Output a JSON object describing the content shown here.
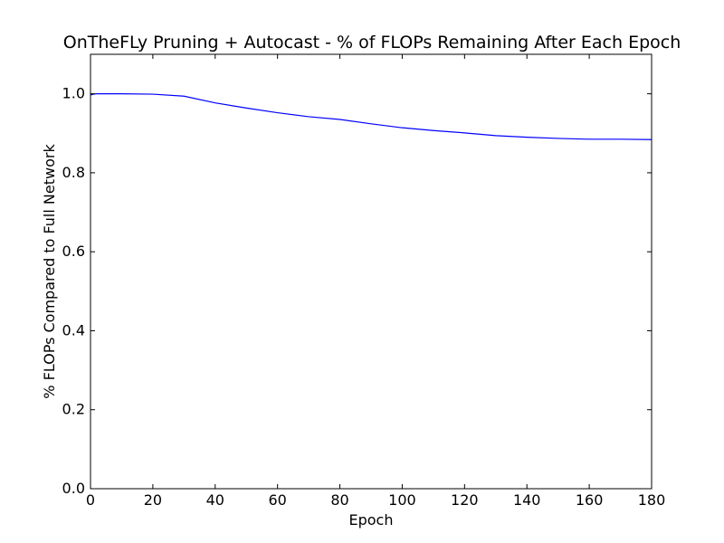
{
  "chart_data": {
    "type": "line",
    "title": "OnTheFLy Pruning + Autocast - % of FLOPs Remaining After Each Epoch",
    "xlabel": "Epoch",
    "ylabel": "% FLOPs Compared to Full Network",
    "xlim": [
      0,
      180
    ],
    "ylim": [
      0.0,
      1.1
    ],
    "xticks": [
      0,
      20,
      40,
      60,
      80,
      100,
      120,
      140,
      160,
      180
    ],
    "xtick_labels": [
      "0",
      "20",
      "40",
      "60",
      "80",
      "100",
      "120",
      "140",
      "160",
      "180"
    ],
    "yticks": [
      0.0,
      0.2,
      0.4,
      0.6,
      0.8,
      1.0
    ],
    "ytick_labels": [
      "0.0",
      "0.2",
      "0.4",
      "0.6",
      "0.8",
      "1.0"
    ],
    "grid": false,
    "series": [
      {
        "color": "#0000ff",
        "x": [
          0,
          1,
          2,
          10,
          20,
          30,
          40,
          50,
          60,
          70,
          80,
          90,
          100,
          110,
          120,
          130,
          140,
          150,
          160,
          170,
          180
        ],
        "y": [
          0.997,
          0.999,
          1.0,
          1.0,
          0.999,
          0.994,
          0.977,
          0.964,
          0.952,
          0.942,
          0.935,
          0.924,
          0.914,
          0.907,
          0.901,
          0.894,
          0.89,
          0.887,
          0.885,
          0.885,
          0.884
        ]
      }
    ]
  }
}
